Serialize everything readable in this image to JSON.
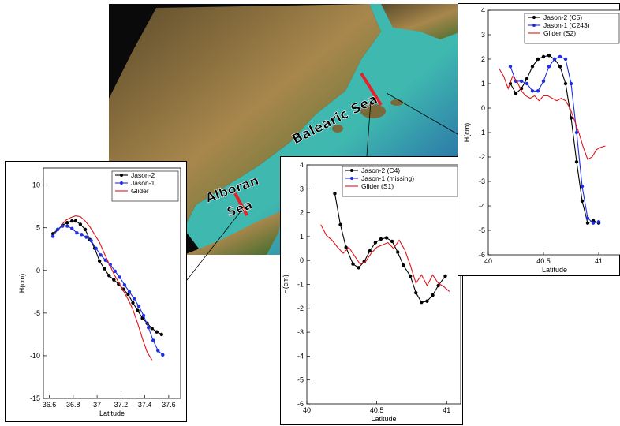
{
  "map": {
    "labels": {
      "balearic": "Balearic Sea",
      "alboran_line1": "Alboran",
      "alboran_line2": "Sea"
    },
    "colors": {
      "land_dark": "#5a4a2a",
      "land_light": "#a8874c",
      "vegetation": "#3c6a2a",
      "sea_shallow": "#3fb8b0",
      "sea_deep": "#1b3fa0",
      "track": "#e8202a"
    }
  },
  "chart_data": [
    {
      "id": "alboran",
      "type": "line",
      "xlabel": "Latitude",
      "ylabel": "H(cm)",
      "xlim": [
        36.55,
        37.7
      ],
      "ylim": [
        -15,
        12
      ],
      "xticks": [
        "36.6",
        "36.8",
        "37",
        "37.2",
        "37.4",
        "37.6"
      ],
      "xtick_values": [
        36.6,
        36.8,
        37.0,
        37.2,
        37.4,
        37.6
      ],
      "yticks": [
        "-15",
        "-10",
        "-5",
        "0",
        "5",
        "10"
      ],
      "ytick_values": [
        -15,
        -10,
        -5,
        0,
        5,
        10
      ],
      "legend": [
        "Jason-2",
        "Jason-1",
        "Glider"
      ],
      "series": [
        {
          "name": "Jason-2",
          "color": "#000000",
          "markers": true,
          "x": [
            36.63,
            36.67,
            36.71,
            36.75,
            36.79,
            36.82,
            36.86,
            36.9,
            36.94,
            36.98,
            37.02,
            37.06,
            37.1,
            37.14,
            37.18,
            37.22,
            37.26,
            37.3,
            37.34,
            37.38,
            37.42,
            37.46,
            37.5,
            37.54
          ],
          "y": [
            4.3,
            4.8,
            5.3,
            5.6,
            5.8,
            5.8,
            5.4,
            4.8,
            3.6,
            2.6,
            1.1,
            0.2,
            -0.6,
            -1.1,
            -1.6,
            -2.2,
            -2.8,
            -3.8,
            -4.7,
            -5.6,
            -6.2,
            -6.8,
            -7.2,
            -7.5
          ]
        },
        {
          "name": "Jason-1",
          "color": "#1f2fe0",
          "markers": true,
          "x": [
            36.63,
            36.67,
            36.71,
            36.75,
            36.79,
            36.83,
            36.87,
            36.91,
            36.95,
            36.99,
            37.03,
            37.07,
            37.11,
            37.15,
            37.19,
            37.23,
            37.27,
            37.31,
            37.35,
            37.39,
            37.43,
            37.47,
            37.51,
            37.55
          ],
          "y": [
            4.0,
            4.8,
            5.2,
            5.2,
            4.9,
            4.4,
            4.2,
            3.9,
            3.5,
            2.6,
            1.8,
            1.2,
            0.7,
            -0.1,
            -0.8,
            -1.7,
            -2.5,
            -3.3,
            -4.2,
            -5.3,
            -6.7,
            -8.2,
            -9.4,
            -9.9
          ]
        },
        {
          "name": "Glider",
          "color": "#e0141c",
          "markers": false,
          "x": [
            36.7,
            36.74,
            36.78,
            36.82,
            36.86,
            36.9,
            36.94,
            36.98,
            37.02,
            37.06,
            37.1,
            37.14,
            37.18,
            37.22,
            37.26,
            37.3,
            37.34,
            37.38,
            37.42,
            37.46
          ],
          "y": [
            5.3,
            5.9,
            6.2,
            6.4,
            6.3,
            5.8,
            5.1,
            4.2,
            3.3,
            2.0,
            0.8,
            -0.4,
            -1.4,
            -2.4,
            -3.4,
            -4.6,
            -6.2,
            -8.0,
            -9.6,
            -10.5
          ]
        }
      ]
    },
    {
      "id": "center",
      "type": "line",
      "xlabel": "Latitude",
      "ylabel": "H(cm)",
      "xlim": [
        40.0,
        41.1
      ],
      "ylim": [
        -6,
        4
      ],
      "xticks": [
        "40",
        "40.5",
        "41"
      ],
      "xtick_values": [
        40.0,
        40.5,
        41.0
      ],
      "yticks": [
        "-6",
        "-5",
        "-4",
        "-3",
        "-2",
        "-1",
        "0",
        "1",
        "2",
        "3",
        "4"
      ],
      "ytick_values": [
        -6,
        -5,
        -4,
        -3,
        -2,
        -1,
        0,
        1,
        2,
        3,
        4
      ],
      "legend": [
        "Jason-2 (C4)",
        "Jason-1 (missing)",
        "Glider (S1)"
      ],
      "series": [
        {
          "name": "Jason-2 (C4)",
          "color": "#000000",
          "markers": true,
          "x": [
            40.2,
            40.24,
            40.28,
            40.33,
            40.37,
            40.41,
            40.45,
            40.49,
            40.53,
            40.57,
            40.61,
            40.65,
            40.69,
            40.74,
            40.78,
            40.82,
            40.86,
            40.9,
            40.94,
            40.99
          ],
          "y": [
            2.8,
            1.5,
            0.55,
            -0.15,
            -0.3,
            -0.05,
            0.4,
            0.75,
            0.9,
            0.95,
            0.8,
            0.35,
            -0.2,
            -0.65,
            -1.35,
            -1.75,
            -1.7,
            -1.45,
            -1.05,
            -0.65
          ]
        },
        {
          "name": "Jason-1 (missing)",
          "color": "#1f2fe0",
          "markers": true,
          "x": [],
          "y": []
        },
        {
          "name": "Glider (S1)",
          "color": "#e0141c",
          "markers": false,
          "x": [
            40.1,
            40.14,
            40.18,
            40.22,
            40.26,
            40.3,
            40.34,
            40.38,
            40.42,
            40.46,
            40.5,
            40.54,
            40.58,
            40.62,
            40.66,
            40.7,
            40.74,
            40.78,
            40.82,
            40.86,
            40.9,
            40.94,
            40.98,
            41.02
          ],
          "y": [
            1.5,
            1.05,
            0.85,
            0.55,
            0.3,
            0.55,
            0.2,
            -0.15,
            -0.05,
            0.3,
            0.55,
            0.65,
            0.75,
            0.5,
            0.85,
            0.45,
            -0.2,
            -0.95,
            -0.6,
            -1.05,
            -0.6,
            -0.95,
            -1.1,
            -1.3
          ]
        }
      ]
    },
    {
      "id": "balearic",
      "type": "line",
      "xlabel": "Latitude",
      "ylabel": "H(cm)",
      "xlim": [
        40.0,
        41.2
      ],
      "ylim": [
        -6,
        4
      ],
      "xticks": [
        "40",
        "40.5",
        "41"
      ],
      "xtick_values": [
        40.0,
        40.5,
        41.0
      ],
      "yticks": [
        "-6",
        "-5",
        "-4",
        "-3",
        "-2",
        "-1",
        "0",
        "1",
        "2",
        "3",
        "4"
      ],
      "ytick_values": [
        -6,
        -5,
        -4,
        -3,
        -2,
        -1,
        0,
        1,
        2,
        3,
        4
      ],
      "legend": [
        "Jason-2 (C5)",
        "Jason-1 (C243)",
        "Glider (S2)"
      ],
      "series": [
        {
          "name": "Jason-2 (C5)",
          "color": "#000000",
          "markers": true,
          "x": [
            40.2,
            40.25,
            40.3,
            40.35,
            40.4,
            40.45,
            40.5,
            40.55,
            40.6,
            40.65,
            40.7,
            40.75,
            40.8,
            40.85,
            40.9,
            40.95,
            41.0
          ],
          "y": [
            1.0,
            0.6,
            0.8,
            1.2,
            1.7,
            2.0,
            2.1,
            2.15,
            2.0,
            1.7,
            1.0,
            -0.4,
            -2.2,
            -3.8,
            -4.7,
            -4.6,
            -4.7
          ]
        },
        {
          "name": "Jason-1 (C243)",
          "color": "#1f2fe0",
          "markers": true,
          "x": [
            40.2,
            40.25,
            40.3,
            40.35,
            40.4,
            40.45,
            40.5,
            40.55,
            40.6,
            40.65,
            40.7,
            40.75,
            40.8,
            40.85,
            40.9,
            40.95,
            41.0
          ],
          "y": [
            1.7,
            1.1,
            1.1,
            1.0,
            0.7,
            0.7,
            1.1,
            1.7,
            2.0,
            2.1,
            2.0,
            1.0,
            -1.0,
            -3.2,
            -4.5,
            -4.7,
            -4.65
          ]
        },
        {
          "name": "Glider (S2)",
          "color": "#e0141c",
          "markers": false,
          "x": [
            40.1,
            40.14,
            40.18,
            40.22,
            40.26,
            40.3,
            40.34,
            40.38,
            40.42,
            40.46,
            40.5,
            40.54,
            40.58,
            40.62,
            40.66,
            40.7,
            40.74,
            40.78,
            40.82,
            40.86,
            40.9,
            40.94,
            40.98,
            41.02,
            41.06
          ],
          "y": [
            1.6,
            1.3,
            0.8,
            1.3,
            1.1,
            0.7,
            0.5,
            0.4,
            0.5,
            0.3,
            0.5,
            0.5,
            0.4,
            0.3,
            0.4,
            0.3,
            0.0,
            -0.5,
            -1.0,
            -1.6,
            -2.1,
            -2.0,
            -1.7,
            -1.6,
            -1.55
          ]
        }
      ]
    }
  ]
}
